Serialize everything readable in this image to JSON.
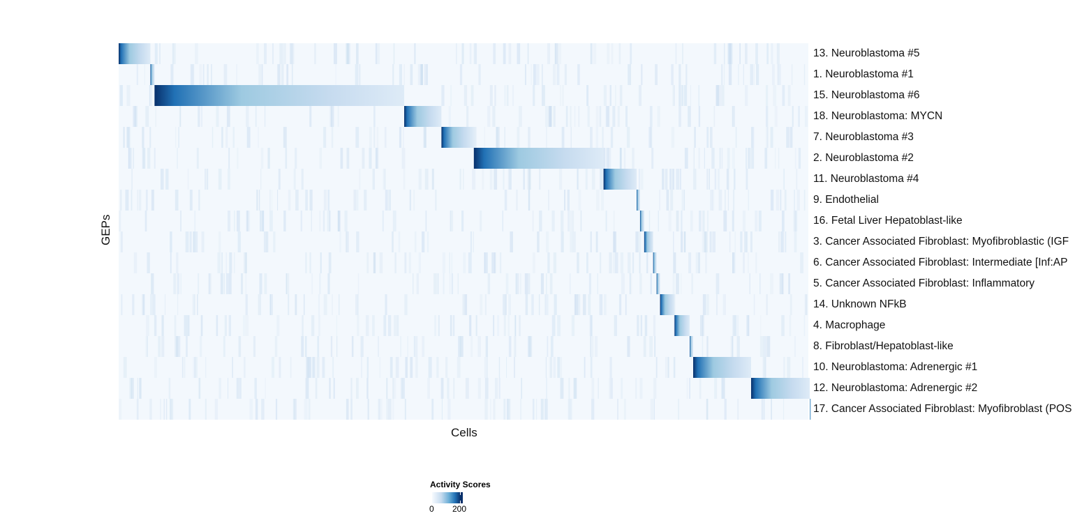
{
  "chart_data": {
    "type": "heatmap",
    "xlabel": "Cells",
    "ylabel": "GEPs",
    "legend": {
      "title": "Activity Scores",
      "ticks": [
        0,
        200
      ],
      "range": [
        0,
        215
      ],
      "colors": [
        "#f7fbff",
        "#c6dbef",
        "#6baed6",
        "#2171b5",
        "#08306b"
      ],
      "placement": "bottom"
    },
    "rows": [
      {
        "label": "13. Neuroblastoma #5",
        "cell_fraction": 0.046
      },
      {
        "label": "1. Neuroblastoma #1",
        "cell_fraction": 0.006
      },
      {
        "label": "15. Neuroblastoma #6",
        "cell_fraction": 0.362
      },
      {
        "label": "18. Neuroblastoma: MYCN",
        "cell_fraction": 0.054
      },
      {
        "label": "7. Neuroblastoma #3",
        "cell_fraction": 0.047
      },
      {
        "label": "2. Neuroblastoma #2",
        "cell_fraction": 0.188
      },
      {
        "label": "11. Neuroblastoma #4",
        "cell_fraction": 0.048
      },
      {
        "label": "9. Endothelial",
        "cell_fraction": 0.005
      },
      {
        "label": "16. Fetal Liver Hepatoblast-like",
        "cell_fraction": 0.006
      },
      {
        "label": "3. Cancer Associated Fibroblast: Myofibroblastic (IGF",
        "cell_fraction": 0.013
      },
      {
        "label": "6. Cancer Associated Fibroblast: Intermediate [Inf:AP",
        "cell_fraction": 0.005
      },
      {
        "label": "5. Cancer Associated Fibroblast: Inflammatory",
        "cell_fraction": 0.005
      },
      {
        "label": "14. Unknown NFkB",
        "cell_fraction": 0.021
      },
      {
        "label": "4. Macrophage",
        "cell_fraction": 0.022
      },
      {
        "label": "8. Fibroblast/Hepatoblast-like",
        "cell_fraction": 0.005
      },
      {
        "label": "10. Neuroblastoma: Adrenergic #1",
        "cell_fraction": 0.084
      },
      {
        "label": "12. Neuroblastoma: Adrenergic #2",
        "cell_fraction": 0.085
      },
      {
        "label": "17. Cancer Associated Fibroblast: Myofibroblast (POS",
        "cell_fraction": 0.002
      }
    ]
  }
}
